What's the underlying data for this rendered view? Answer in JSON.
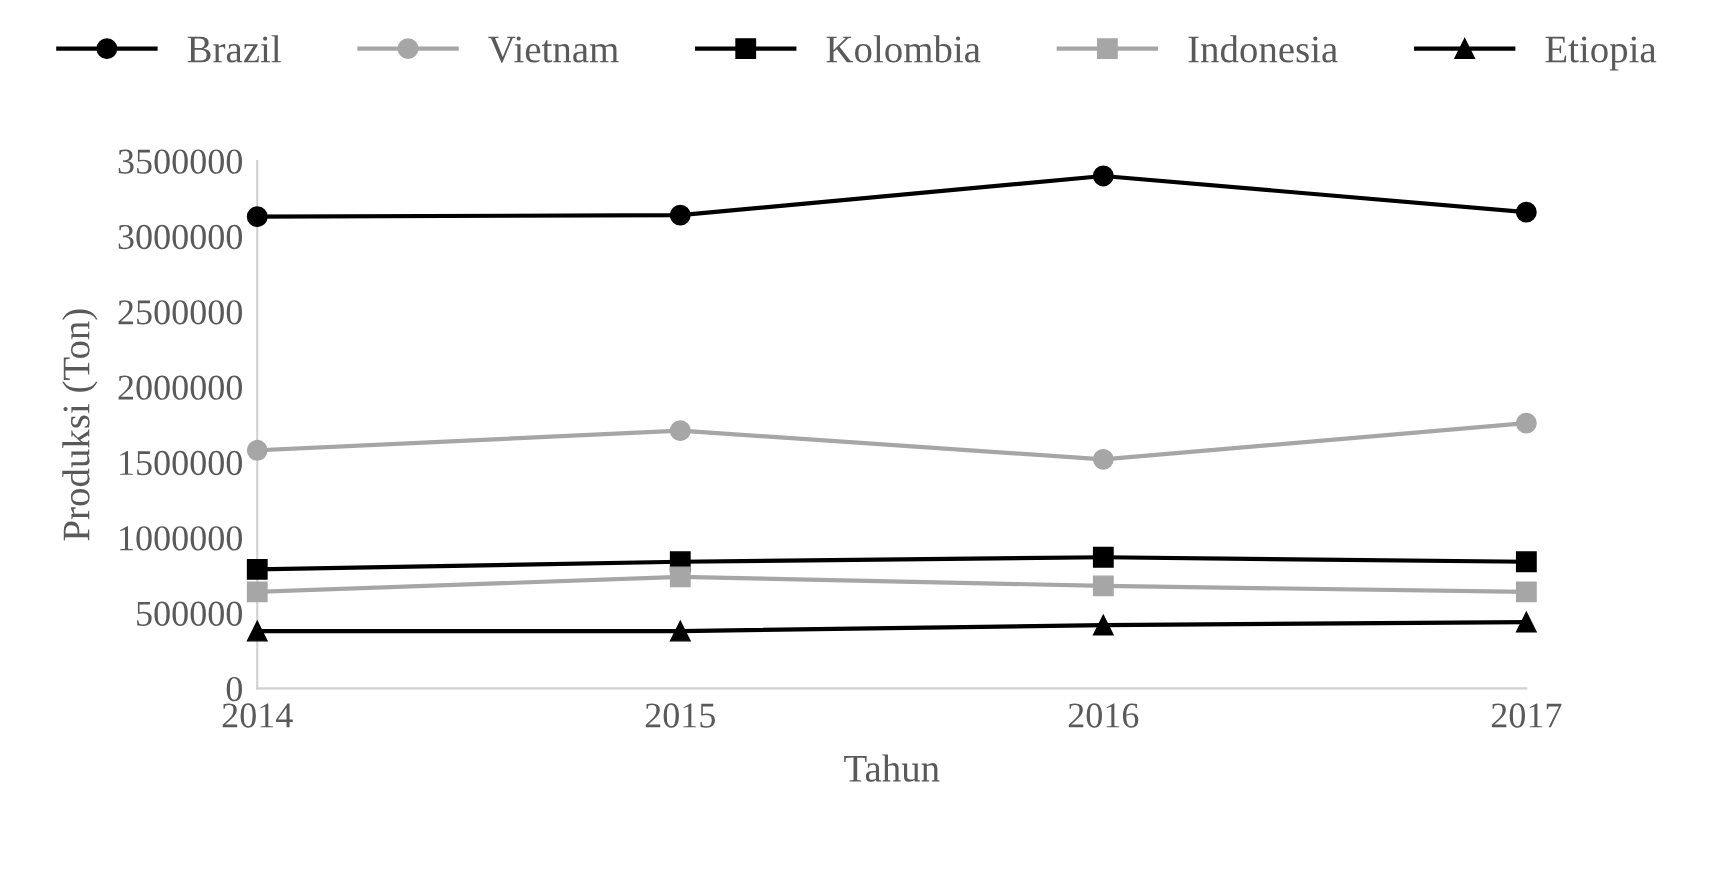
{
  "chart_data": {
    "type": "line",
    "xlabel": "Tahun",
    "ylabel": "Produksi (Ton)",
    "x": [
      2014,
      2015,
      2016,
      2017
    ],
    "xlim": [
      2014,
      2017
    ],
    "xticks": [
      2014,
      2015,
      2016,
      2017
    ],
    "ylim": [
      0,
      3500000
    ],
    "yticks": [
      0,
      500000,
      1000000,
      1500000,
      2000000,
      2500000,
      3000000,
      3500000
    ],
    "grid": false,
    "legend": "top",
    "series": [
      {
        "name": "Brazil",
        "color": "#000000",
        "marker": "circle",
        "values": [
          3130000,
          3140000,
          3400000,
          3160000
        ]
      },
      {
        "name": "Vietnam",
        "color": "#a6a6a6",
        "marker": "circle",
        "values": [
          1580000,
          1710000,
          1520000,
          1760000
        ]
      },
      {
        "name": "Kolombia",
        "color": "#000000",
        "marker": "square",
        "values": [
          790000,
          840000,
          870000,
          840000
        ]
      },
      {
        "name": "Indonesia",
        "color": "#a6a6a6",
        "marker": "square",
        "values": [
          640000,
          740000,
          680000,
          640000
        ]
      },
      {
        "name": "Etiopia",
        "color": "#000000",
        "marker": "triangle",
        "values": [
          380000,
          380000,
          420000,
          440000
        ]
      }
    ]
  }
}
